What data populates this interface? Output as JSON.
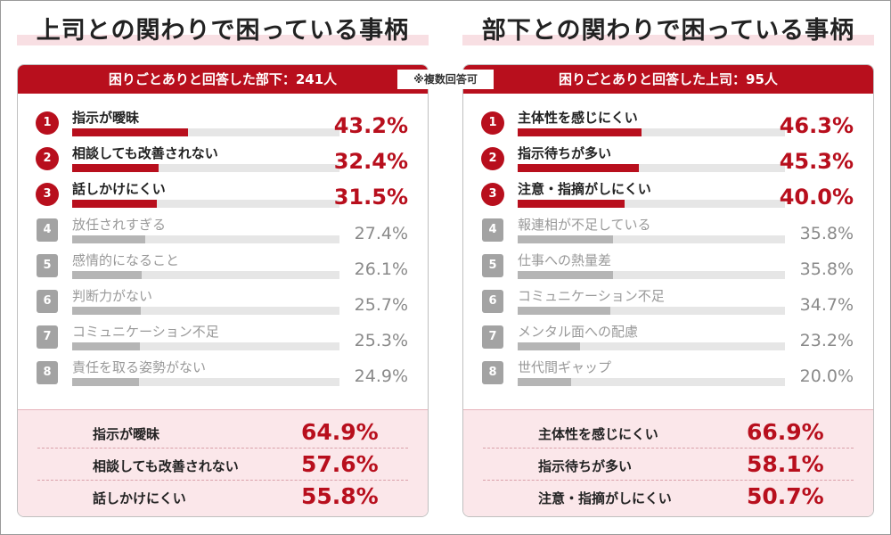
{
  "note": "※複数回答可",
  "colors": {
    "accent": "#b80f1d",
    "muted": "#a3a3a3",
    "highlight_bg": "#fbe7ea",
    "title_underline": "#f8dfe3"
  },
  "chart_data": [
    {
      "type": "bar",
      "title": "上司との関わりで困っている事柄",
      "subtitle": "困りごとありと回答した部下：241人",
      "categories": [
        "指示が曖昧",
        "相談しても改善されない",
        "話しかけにくい",
        "放任されすぎる",
        "感情的になること",
        "判断力がない",
        "コミュニケーション不足",
        "責任を取る姿勢がない"
      ],
      "values": [
        43.2,
        32.4,
        31.5,
        27.4,
        26.1,
        25.7,
        25.3,
        24.9
      ],
      "value_labels": [
        "43.2%",
        "32.4%",
        "31.5%",
        "27.4%",
        "26.1%",
        "25.7%",
        "25.3%",
        "24.9%"
      ],
      "ranks": [
        "1",
        "2",
        "3",
        "4",
        "5",
        "6",
        "7",
        "8"
      ],
      "highlight": {
        "categories": [
          "指示が曖昧",
          "相談しても改善されない",
          "話しかけにくい"
        ],
        "value_labels": [
          "64.9%",
          "57.6%",
          "55.8%"
        ],
        "values": [
          64.9,
          57.6,
          55.8
        ]
      }
    },
    {
      "type": "bar",
      "title": "部下との関わりで困っている事柄",
      "subtitle": "困りごとありと回答した上司：95人",
      "categories": [
        "主体性を感じにくい",
        "指示待ちが多い",
        "注意・指摘がしにくい",
        "報連相が不足している",
        "仕事への熱量差",
        "コミュニケーション不足",
        "メンタル面への配慮",
        "世代間ギャップ"
      ],
      "values": [
        46.3,
        45.3,
        40.0,
        35.8,
        35.8,
        34.7,
        23.2,
        20.0
      ],
      "value_labels": [
        "46.3%",
        "45.3%",
        "40.0%",
        "35.8%",
        "35.8%",
        "34.7%",
        "23.2%",
        "20.0%"
      ],
      "ranks": [
        "1",
        "2",
        "3",
        "4",
        "5",
        "6",
        "7",
        "8"
      ],
      "highlight": {
        "categories": [
          "主体性を感じにくい",
          "指示待ちが多い",
          "注意・指摘がしにくい"
        ],
        "value_labels": [
          "66.9%",
          "58.1%",
          "50.7%"
        ],
        "values": [
          66.9,
          58.1,
          50.7
        ]
      }
    }
  ]
}
